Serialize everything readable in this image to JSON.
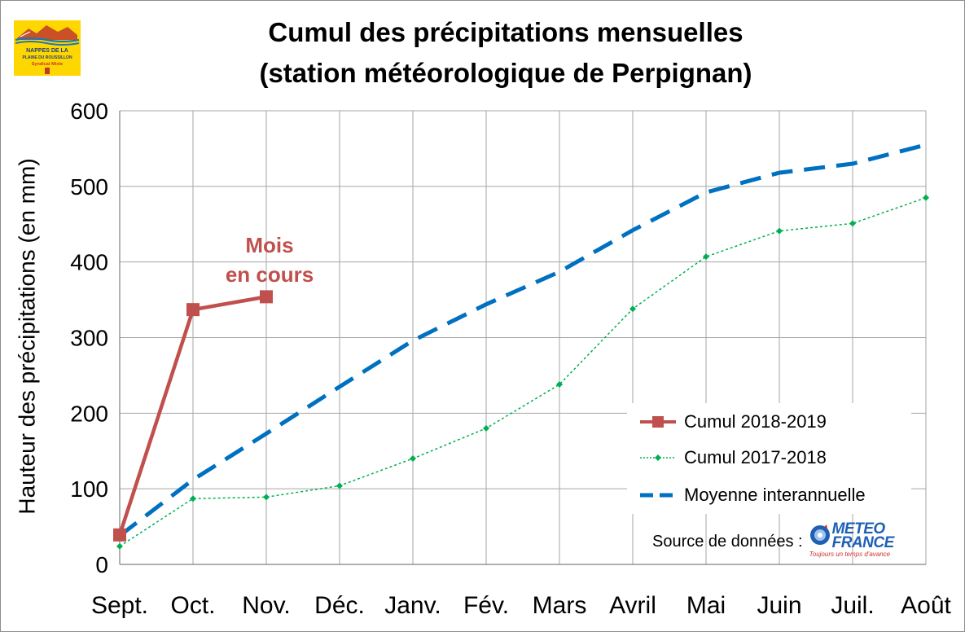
{
  "chart_data": {
    "type": "line",
    "title": "Cumul des précipitations mensuelles",
    "subtitle": "(station météorologique de Perpignan)",
    "ylabel": "Hauteur des précipitations (en mm)",
    "xlabel": "",
    "categories": [
      "Sept.",
      "Oct.",
      "Nov.",
      "Déc.",
      "Janv.",
      "Fév.",
      "Mars",
      "Avril",
      "Mai",
      "Juin",
      "Juil.",
      "Août"
    ],
    "yticks": [
      "0",
      "100",
      "200",
      "300",
      "400",
      "500",
      "600"
    ],
    "ylim": [
      0,
      600
    ],
    "grid": true,
    "legend_position": "bottom-right",
    "series": [
      {
        "name": "Cumul 2018-2019",
        "color": "#c0504d",
        "style": "solid-square-markers",
        "values": [
          39,
          337,
          354,
          null,
          null,
          null,
          null,
          null,
          null,
          null,
          null,
          null
        ]
      },
      {
        "name": "Cumul 2017-2018",
        "color": "#00b050",
        "style": "dotted-diamond-markers",
        "values": [
          24,
          87,
          89,
          104,
          140,
          180,
          238,
          338,
          407,
          441,
          451,
          485
        ]
      },
      {
        "name": "Moyenne interannuelle",
        "color": "#0070c0",
        "style": "dashed",
        "values": [
          38,
          112,
          173,
          235,
          296,
          344,
          387,
          442,
          492,
          518,
          530,
          555
        ]
      }
    ],
    "annotation": {
      "lines": [
        "Mois",
        "en cours"
      ],
      "color": "#c0504d"
    }
  },
  "source": {
    "label": "Source de données :",
    "logo_lines": [
      "METEO",
      "FRANCE"
    ],
    "tagline": "Toujours un temps d'avance"
  },
  "logo": {
    "lines": [
      "NAPPES DE LA",
      "PLAINE DU ROUSSILLON",
      "Syndicat Mixte"
    ],
    "background": "#ffd700"
  }
}
